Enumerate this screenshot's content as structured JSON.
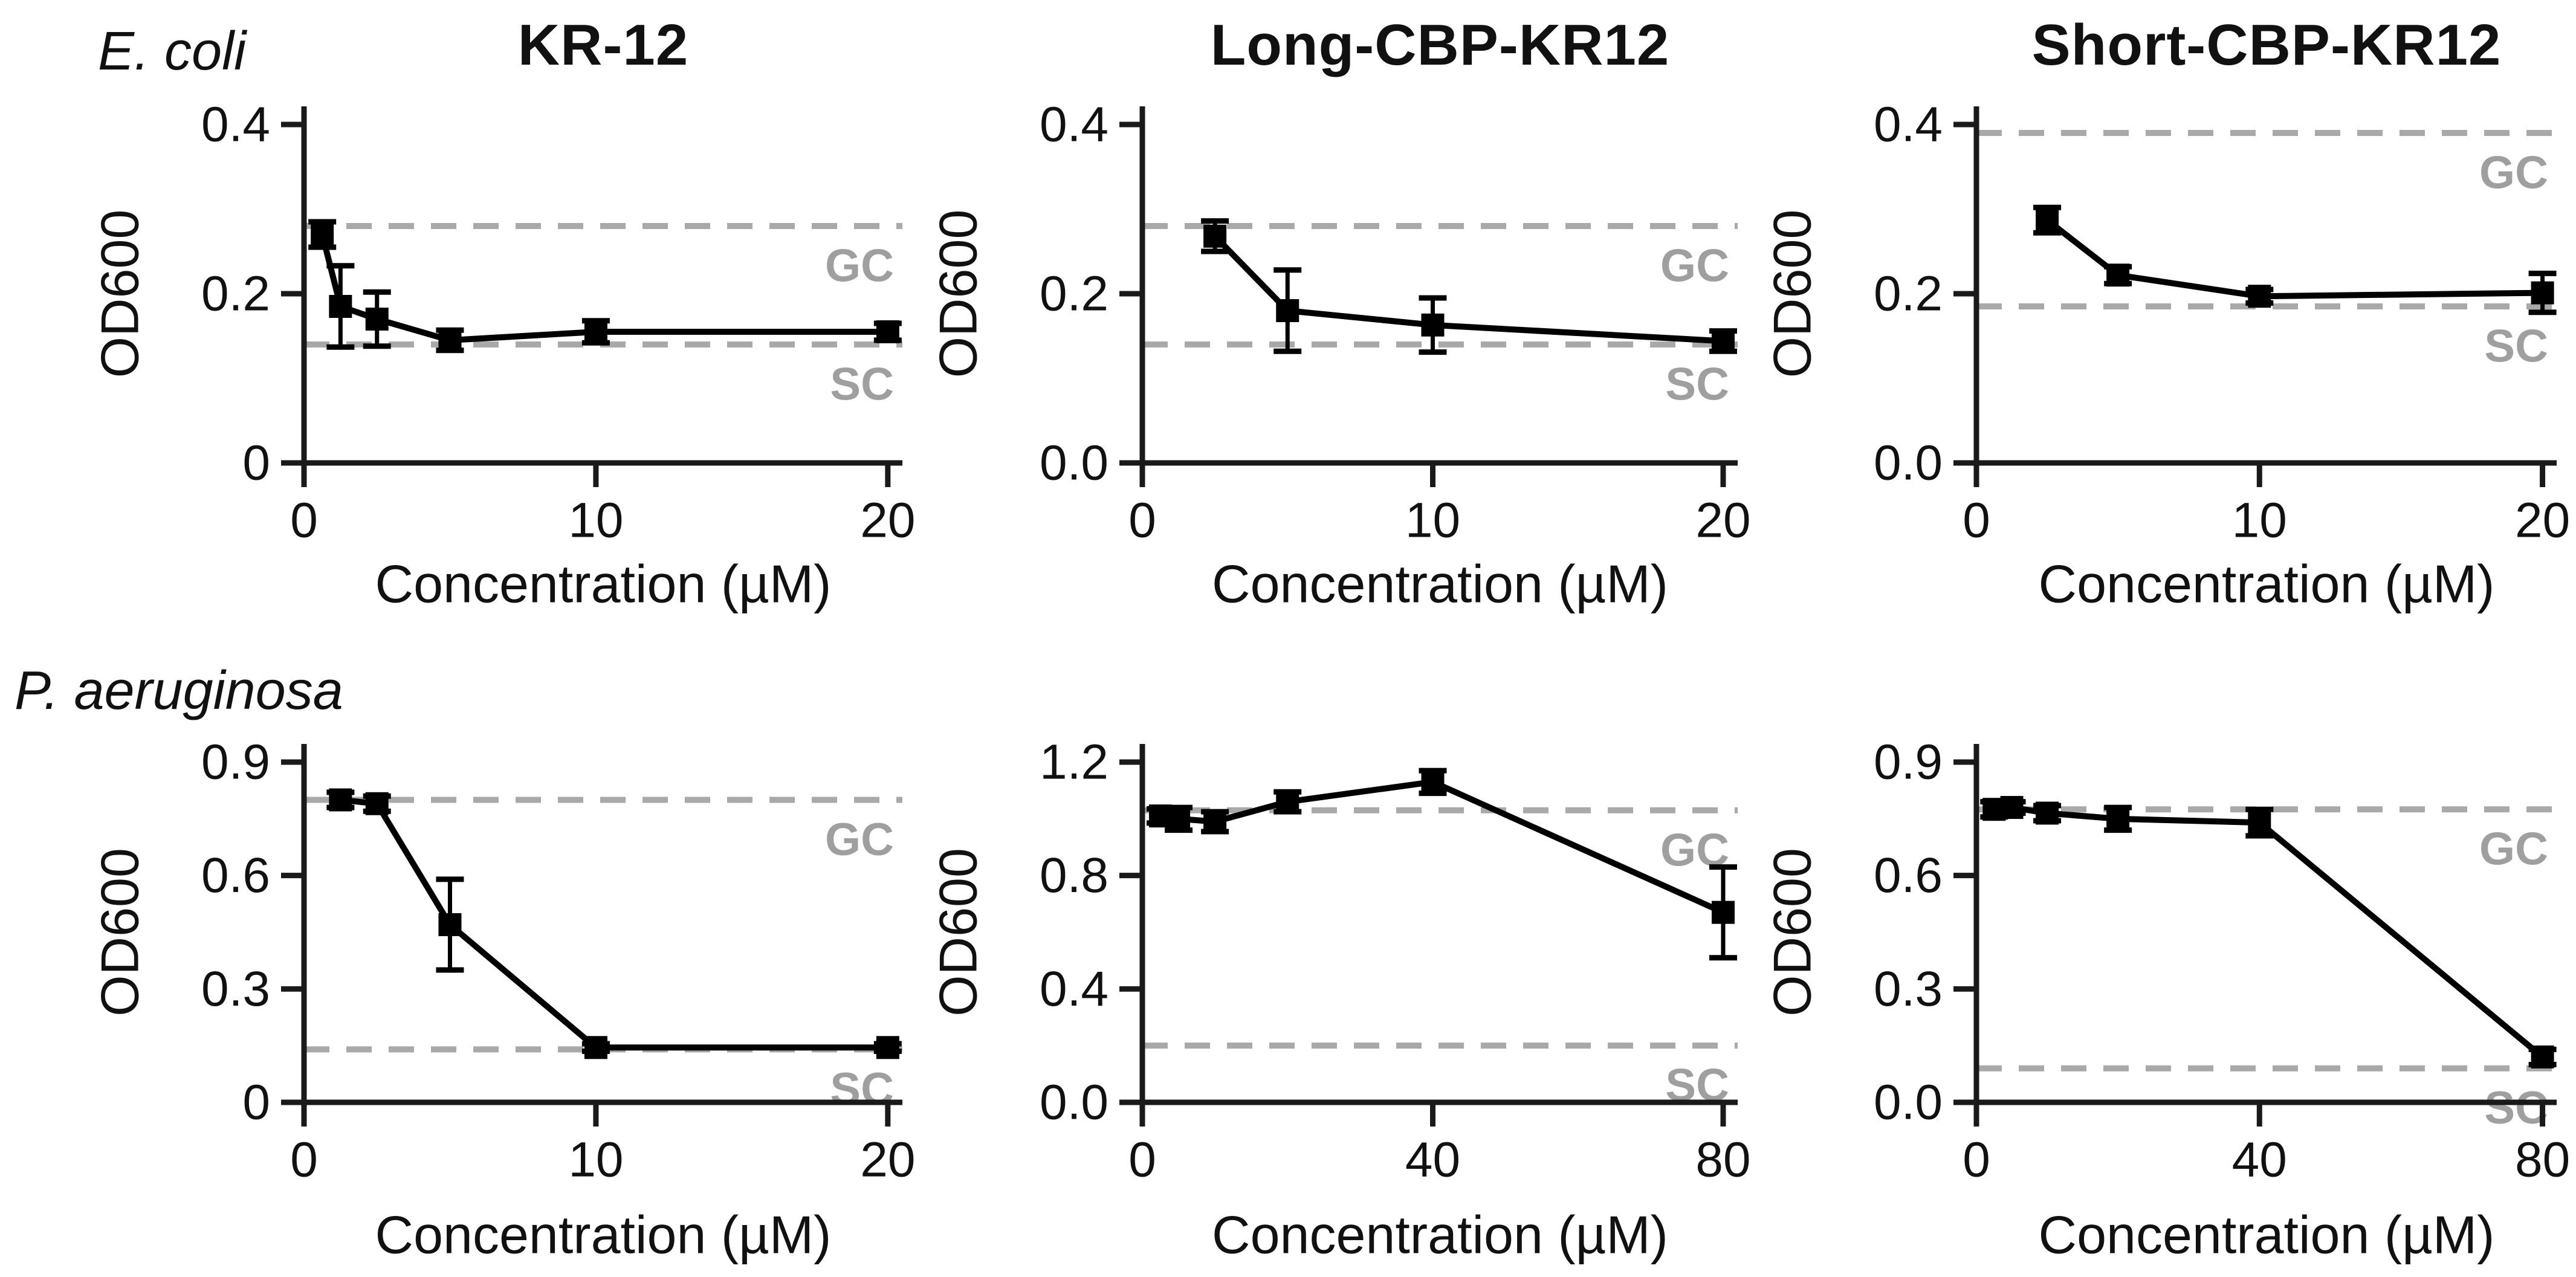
{
  "figure": {
    "row_labels": [
      "E. coli",
      "P. aeruginosa"
    ],
    "background": "#ffffff",
    "colors": {
      "line": "#000000",
      "marker": "#000000",
      "axis": "#1a1a1a",
      "dashed_control": "#a9a9a9",
      "control_label": "#9f9f9f",
      "text": "#111111"
    }
  },
  "chart_data": [
    {
      "type": "line",
      "title": "KR-12",
      "organism": "E. coli",
      "xlabel": "Concentration (µM)",
      "ylabel": "OD600",
      "x": [
        0.625,
        1.25,
        2.5,
        5,
        10,
        20
      ],
      "y": [
        0.27,
        0.185,
        0.17,
        0.145,
        0.155,
        0.155
      ],
      "err": [
        0.015,
        0.048,
        0.032,
        0.012,
        0.013,
        0.01
      ],
      "xlim": [
        0,
        20.5
      ],
      "ylim": [
        0,
        0.4
      ],
      "xticks": [
        0,
        10,
        20
      ],
      "xtick_labels": [
        "0",
        "10",
        "20"
      ],
      "yticks": [
        0,
        0.2,
        0.4
      ],
      "ytick_labels": [
        "0",
        "0.2",
        "0.4"
      ],
      "gc": 0.28,
      "sc": 0.14,
      "gc_label": "GC",
      "sc_label": "SC",
      "grid": false,
      "legend": "none"
    },
    {
      "type": "line",
      "title": "Long-CBP-KR12",
      "organism": "E. coli",
      "xlabel": "Concentration (µM)",
      "ylabel": "OD600",
      "x": [
        2.5,
        5,
        10,
        20
      ],
      "y": [
        0.268,
        0.18,
        0.163,
        0.144
      ],
      "err": [
        0.018,
        0.048,
        0.032,
        0.012
      ],
      "xlim": [
        0,
        20.5
      ],
      "ylim": [
        0,
        0.4
      ],
      "xticks": [
        0,
        10,
        20
      ],
      "xtick_labels": [
        "0",
        "10",
        "20"
      ],
      "yticks": [
        0,
        0.2,
        0.4
      ],
      "ytick_labels": [
        "0.0",
        "0.2",
        "0.4"
      ],
      "gc": 0.28,
      "sc": 0.14,
      "gc_label": "GC",
      "sc_label": "SC",
      "grid": false,
      "legend": "none"
    },
    {
      "type": "line",
      "title": "Short-CBP-KR12",
      "organism": "E. coli",
      "xlabel": "Concentration (µM)",
      "ylabel": "OD600",
      "x": [
        2.5,
        5,
        10,
        20
      ],
      "y": [
        0.287,
        0.222,
        0.197,
        0.201
      ],
      "err": [
        0.015,
        0.01,
        0.008,
        0.023
      ],
      "xlim": [
        0,
        20.5
      ],
      "ylim": [
        0,
        0.4
      ],
      "xticks": [
        0,
        10,
        20
      ],
      "xtick_labels": [
        "0",
        "10",
        "20"
      ],
      "yticks": [
        0,
        0.2,
        0.4
      ],
      "ytick_labels": [
        "0.0",
        "0.2",
        "0.4"
      ],
      "gc": 0.39,
      "sc": 0.185,
      "gc_label": "GC",
      "sc_label": "SC",
      "grid": false,
      "legend": "none"
    },
    {
      "type": "line",
      "title": "KR-12",
      "organism": "P. aeruginosa",
      "xlabel": "Concentration (µM)",
      "ylabel": "OD600",
      "x": [
        1.25,
        2.5,
        5,
        10,
        20
      ],
      "y": [
        0.8,
        0.79,
        0.47,
        0.145,
        0.145
      ],
      "err": [
        0.02,
        0.02,
        0.12,
        0.01,
        0.01
      ],
      "xlim": [
        0,
        20.5
      ],
      "ylim": [
        0,
        0.9
      ],
      "xticks": [
        0,
        10,
        20
      ],
      "xtick_labels": [
        "0",
        "10",
        "20"
      ],
      "yticks": [
        0,
        0.3,
        0.6,
        0.9
      ],
      "ytick_labels": [
        "0",
        "0.3",
        "0.6",
        "0.9"
      ],
      "gc": 0.8,
      "sc": 0.14,
      "gc_label": "GC",
      "sc_label": "SC",
      "grid": false,
      "legend": "none"
    },
    {
      "type": "line",
      "title": "Long-CBP-KR12",
      "organism": "P. aeruginosa",
      "xlabel": "Concentration (µM)",
      "ylabel": "OD600",
      "x": [
        2.5,
        5,
        10,
        20,
        40,
        80
      ],
      "y": [
        1.01,
        1.0,
        0.99,
        1.06,
        1.13,
        0.67
      ],
      "err": [
        0.025,
        0.04,
        0.035,
        0.035,
        0.04,
        0.16
      ],
      "xlim": [
        0,
        82
      ],
      "ylim": [
        0,
        1.2
      ],
      "xticks": [
        0,
        40,
        80
      ],
      "xtick_labels": [
        "0",
        "40",
        "80"
      ],
      "yticks": [
        0,
        0.4,
        0.8,
        1.2
      ],
      "ytick_labels": [
        "0.0",
        "0.4",
        "0.8",
        "1.2"
      ],
      "gc": 1.03,
      "sc": 0.2,
      "gc_label": "GC",
      "sc_label": "SC",
      "grid": false,
      "legend": "none"
    },
    {
      "type": "line",
      "title": "Short-CBP-KR12",
      "organism": "P. aeruginosa",
      "xlabel": "Concentration (µM)",
      "ylabel": "OD600",
      "x": [
        2.5,
        5,
        10,
        20,
        40,
        80
      ],
      "y": [
        0.775,
        0.78,
        0.765,
        0.75,
        0.74,
        0.12
      ],
      "err": [
        0.02,
        0.015,
        0.02,
        0.03,
        0.035,
        0.02
      ],
      "xlim": [
        0,
        82
      ],
      "ylim": [
        0,
        0.9
      ],
      "xticks": [
        0,
        40,
        80
      ],
      "xtick_labels": [
        "0",
        "40",
        "80"
      ],
      "yticks": [
        0,
        0.3,
        0.6,
        0.9
      ],
      "ytick_labels": [
        "0.0",
        "0.3",
        "0.6",
        "0.9"
      ],
      "gc": 0.775,
      "sc": 0.09,
      "gc_label": "GC",
      "sc_label": "SC",
      "grid": false,
      "legend": "none"
    }
  ]
}
